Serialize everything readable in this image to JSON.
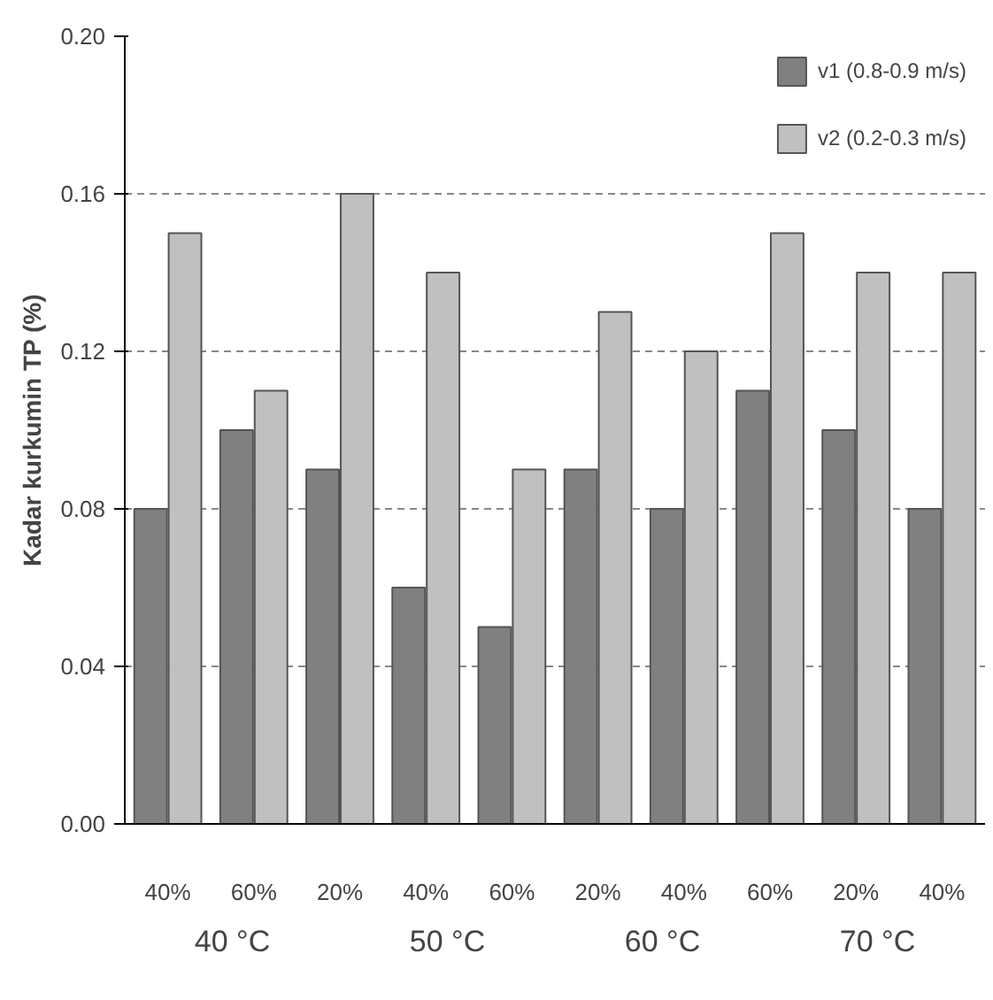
{
  "chart_data": {
    "type": "bar",
    "ylabel": "Kadar kurkumin TP (%)",
    "categories": [
      "40%",
      "60%",
      "20%",
      "40%",
      "60%",
      "20%",
      "40%",
      "60%",
      "20%",
      "40%"
    ],
    "series": [
      {
        "name": "v1 (0.8-0.9 m/s)",
        "color": "#808080",
        "values": [
          0.08,
          0.1,
          0.09,
          0.06,
          0.05,
          0.09,
          0.08,
          0.11,
          0.1,
          0.08
        ]
      },
      {
        "name": "v2 (0.2-0.3 m/s)",
        "color": "#c0c0c0",
        "values": [
          0.15,
          0.11,
          0.16,
          0.14,
          0.09,
          0.13,
          0.12,
          0.15,
          0.14,
          0.14
        ]
      }
    ],
    "ylim": [
      0,
      0.2
    ],
    "yticks": [
      {
        "value": 0,
        "label": "0.00"
      },
      0.04,
      0.08,
      0.12,
      0.16,
      {
        "value": 0.2,
        "label": "0.20"
      }
    ],
    "grid": "y",
    "legend": "top right",
    "annotations": [
      "40 °C",
      "50 °C",
      "60 °C",
      "70 °C"
    ]
  }
}
